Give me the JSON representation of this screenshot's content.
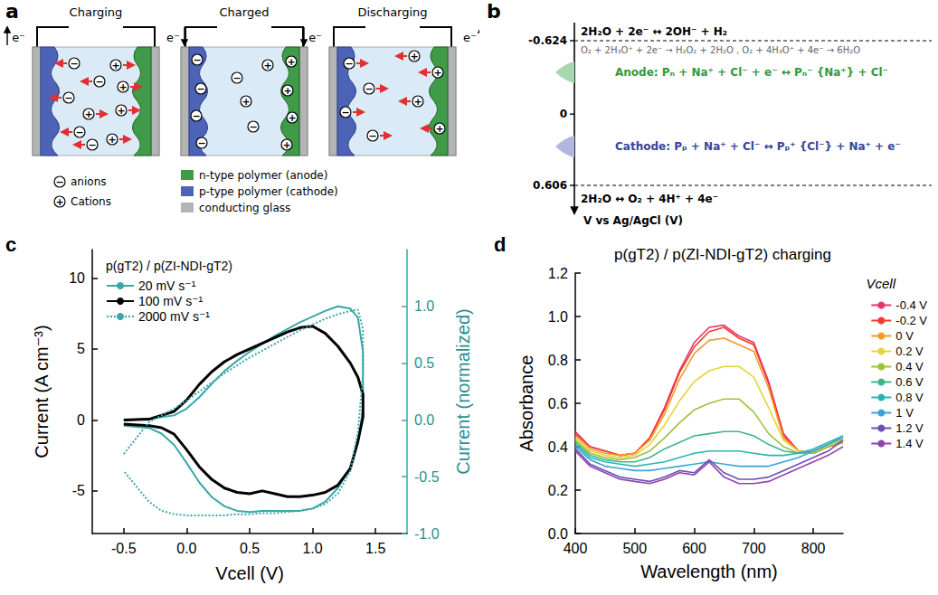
{
  "panel_a": {
    "letter": "a",
    "stages": [
      {
        "title": "Charging",
        "electrons": [
          "e⁻",
          "e⁻"
        ]
      },
      {
        "title": "Charged",
        "electrons": []
      },
      {
        "title": "Discharging",
        "electrons": [
          "e⁻",
          "e⁻"
        ]
      }
    ],
    "anion_symbol": "−",
    "cation_symbol": "+",
    "legend": {
      "anions": "anions",
      "cations": "Cations",
      "n_type": "n-type polymer (anode)",
      "p_type": "p-type polymer (cathode)",
      "glass": "conducting glass"
    }
  },
  "panel_b": {
    "letter": "b",
    "axis_title": "V vs Ag/AgCl (V)",
    "ticks": [
      -0.624,
      0,
      0.606
    ],
    "reactions": {
      "hydrogen": "2H₂O + 2e⁻ ↔ 2OH⁻ + H₂",
      "oxygen_reduction": "O₂ + 2H₃O⁺ + 2e⁻ → H₂O₂ + 2H₂O , O₂ + 4H₃O⁺ + 4e⁻ → 6H₂O",
      "anode": "Anode: Pₙ + Na⁺ + Cl⁻ + e⁻ ↔ Pₙ⁻ {Na⁺} + Cl⁻",
      "cathode": "Cathode: Pₚ + Na⁺ + Cl⁻ ↔ Pₚ⁺ {Cl⁻} + Na⁺ + e⁻",
      "oxygen": "2H₂O ↔ O₂ + 4H⁺ + 4e⁻"
    }
  },
  "chart_data": [
    {
      "letter": "c",
      "type": "line",
      "legend_title": "p(gT2) / p(ZI-NDI-gT2)",
      "x_label": "Vcell (V)",
      "y_label": "Current (A cm⁻³)",
      "y2_label": "Current (normalized)",
      "xlim": [
        -0.75,
        1.75
      ],
      "xticks": [
        -0.5,
        {
          "value": 0,
          "label": "0.0"
        },
        0.5,
        {
          "value": 1,
          "label": "1.0"
        },
        1.5
      ],
      "ylim": [
        -8,
        12
      ],
      "yticks": [
        -5,
        0,
        5,
        10
      ],
      "y2lim": [
        -1,
        1.5
      ],
      "y2ticks": [
        {
          "value": -1,
          "label": "-1.0"
        },
        -0.5,
        {
          "value": 0,
          "label": "0.0"
        },
        0.5,
        {
          "value": 1,
          "label": "1.0"
        }
      ],
      "grid": false,
      "legend": "upper left",
      "marker": "none",
      "series": [
        {
          "name": "20 mV s⁻¹",
          "color": "#3aa6a6",
          "axis": "y2",
          "line_style": "solid",
          "x": [
            -0.5,
            -0.3,
            -0.1,
            0,
            0.1,
            0.2,
            0.3,
            0.4,
            0.5,
            0.6,
            0.7,
            0.8,
            0.9,
            1.0,
            1.1,
            1.2,
            1.3,
            1.36,
            1.4,
            1.4,
            1.36,
            1.3,
            1.2,
            1.1,
            1.0,
            0.9,
            0.8,
            0.7,
            0.6,
            0.5,
            0.4,
            0.3,
            0.2,
            0.1,
            0,
            -0.1,
            -0.2,
            -0.3,
            -0.5
          ],
          "values": [
            0,
            0.01,
            0.04,
            0.1,
            0.2,
            0.32,
            0.43,
            0.52,
            0.6,
            0.67,
            0.74,
            0.8,
            0.86,
            0.91,
            0.96,
            1.0,
            0.98,
            0.9,
            0.6,
            0.1,
            -0.2,
            -0.42,
            -0.6,
            -0.72,
            -0.78,
            -0.8,
            -0.8,
            -0.8,
            -0.8,
            -0.81,
            -0.8,
            -0.76,
            -0.68,
            -0.55,
            -0.38,
            -0.22,
            -0.12,
            -0.07,
            -0.05
          ]
        },
        {
          "name": "100 mV s⁻¹",
          "color": "#000000",
          "line_style": "solid",
          "x": [
            -0.5,
            -0.3,
            -0.1,
            0,
            0.1,
            0.2,
            0.3,
            0.4,
            0.5,
            0.6,
            0.7,
            0.8,
            0.9,
            1.0,
            1.1,
            1.2,
            1.3,
            1.36,
            1.4,
            1.4,
            1.36,
            1.3,
            1.2,
            1.1,
            1.0,
            0.9,
            0.8,
            0.7,
            0.6,
            0.5,
            0.4,
            0.3,
            0.2,
            0.1,
            0,
            -0.1,
            -0.2,
            -0.3,
            -0.5
          ],
          "values": [
            0,
            0.05,
            0.6,
            1.4,
            2.5,
            3.4,
            4.1,
            4.6,
            5.0,
            5.4,
            5.8,
            6.2,
            6.5,
            6.6,
            6.1,
            5.2,
            4.0,
            3.0,
            1.8,
            0.2,
            -1.5,
            -3.4,
            -4.6,
            -5.1,
            -5.3,
            -5.4,
            -5.4,
            -5.2,
            -5.0,
            -5.2,
            -5.1,
            -4.8,
            -4.2,
            -3.3,
            -2.1,
            -1.0,
            -0.55,
            -0.4,
            -0.3
          ]
        },
        {
          "name": "2000 mV s⁻¹",
          "color": "#3aa6a6",
          "axis": "y2",
          "line_style": "dotted",
          "x": [
            -0.5,
            -0.3,
            -0.1,
            0,
            0.1,
            0.2,
            0.3,
            0.4,
            0.5,
            0.6,
            0.7,
            0.8,
            0.9,
            1.0,
            1.1,
            1.2,
            1.3,
            1.36,
            1.4,
            1.4,
            1.36,
            1.3,
            1.2,
            1.1,
            1.0,
            0.9,
            0.8,
            0.7,
            0.6,
            0.5,
            0.4,
            0.3,
            0.2,
            0.1,
            0,
            -0.1,
            -0.2,
            -0.3,
            -0.5
          ],
          "values": [
            -0.3,
            -0.02,
            0.1,
            0.17,
            0.25,
            0.33,
            0.41,
            0.48,
            0.55,
            0.61,
            0.67,
            0.73,
            0.79,
            0.84,
            0.89,
            0.93,
            0.96,
            0.97,
            0.8,
            0.4,
            -0.1,
            -0.45,
            -0.65,
            -0.74,
            -0.78,
            -0.8,
            -0.81,
            -0.82,
            -0.82,
            -0.83,
            -0.83,
            -0.84,
            -0.84,
            -0.84,
            -0.84,
            -0.83,
            -0.8,
            -0.72,
            -0.45
          ]
        }
      ]
    },
    {
      "letter": "d",
      "type": "line",
      "title": "p(gT2) / p(ZI-NDI-gT2) charging",
      "x_label": "Wavelength (nm)",
      "y_label": "Absorbance",
      "legend_title": "Vcell",
      "xlim": [
        400,
        850
      ],
      "xticks": [
        400,
        500,
        600,
        700,
        800
      ],
      "ylim": [
        0,
        1.2
      ],
      "yticks": [
        {
          "value": 0,
          "label": "0.0"
        },
        0.2,
        0.4,
        0.6,
        0.8,
        {
          "value": 1,
          "label": "1.0"
        },
        1.2
      ],
      "grid": false,
      "legend": "right",
      "marker": "none",
      "x": [
        400,
        425,
        450,
        475,
        500,
        525,
        550,
        575,
        600,
        625,
        650,
        675,
        700,
        725,
        750,
        775,
        800,
        825,
        850
      ],
      "series": [
        {
          "name": "-0.4 V",
          "color": "#e8336f",
          "values": [
            0.47,
            0.4,
            0.38,
            0.36,
            0.37,
            0.44,
            0.58,
            0.75,
            0.88,
            0.95,
            0.96,
            0.91,
            0.88,
            0.7,
            0.46,
            0.38,
            0.37,
            0.4,
            0.42
          ]
        },
        {
          "name": "-0.2 V",
          "color": "#f03c2c",
          "values": [
            0.46,
            0.4,
            0.38,
            0.36,
            0.37,
            0.44,
            0.57,
            0.74,
            0.86,
            0.93,
            0.95,
            0.9,
            0.87,
            0.69,
            0.45,
            0.38,
            0.37,
            0.4,
            0.42
          ]
        },
        {
          "name": "0 V",
          "color": "#f59a2a",
          "values": [
            0.45,
            0.39,
            0.37,
            0.36,
            0.37,
            0.43,
            0.55,
            0.71,
            0.83,
            0.89,
            0.9,
            0.87,
            0.84,
            0.67,
            0.44,
            0.38,
            0.37,
            0.4,
            0.42
          ]
        },
        {
          "name": "0.2 V",
          "color": "#e8d43a",
          "values": [
            0.44,
            0.38,
            0.36,
            0.35,
            0.36,
            0.41,
            0.5,
            0.61,
            0.7,
            0.75,
            0.77,
            0.77,
            0.72,
            0.58,
            0.43,
            0.38,
            0.37,
            0.4,
            0.43
          ]
        },
        {
          "name": "0.4 V",
          "color": "#9cc23a",
          "values": [
            0.43,
            0.37,
            0.35,
            0.34,
            0.35,
            0.38,
            0.44,
            0.51,
            0.57,
            0.6,
            0.62,
            0.62,
            0.56,
            0.46,
            0.4,
            0.37,
            0.37,
            0.4,
            0.43
          ]
        },
        {
          "name": "0.6 V",
          "color": "#3fb58a",
          "values": [
            0.42,
            0.36,
            0.34,
            0.33,
            0.33,
            0.35,
            0.39,
            0.42,
            0.45,
            0.46,
            0.47,
            0.47,
            0.45,
            0.41,
            0.38,
            0.37,
            0.38,
            0.41,
            0.44
          ]
        },
        {
          "name": "0.8 V",
          "color": "#2bb5b0",
          "values": [
            0.41,
            0.35,
            0.33,
            0.32,
            0.31,
            0.32,
            0.33,
            0.35,
            0.37,
            0.38,
            0.38,
            0.38,
            0.37,
            0.36,
            0.36,
            0.37,
            0.39,
            0.42,
            0.45
          ]
        },
        {
          "name": "1 V",
          "color": "#3aa4d8",
          "values": [
            0.4,
            0.34,
            0.31,
            0.3,
            0.29,
            0.29,
            0.3,
            0.31,
            0.32,
            0.33,
            0.32,
            0.31,
            0.31,
            0.31,
            0.33,
            0.35,
            0.38,
            0.41,
            0.45
          ]
        },
        {
          "name": "1.2 V",
          "color": "#6b4fb3",
          "values": [
            0.39,
            0.32,
            0.29,
            0.26,
            0.25,
            0.24,
            0.26,
            0.29,
            0.28,
            0.34,
            0.28,
            0.25,
            0.25,
            0.26,
            0.29,
            0.32,
            0.35,
            0.38,
            0.43
          ]
        },
        {
          "name": "1.4 V",
          "color": "#8e44ad",
          "values": [
            0.38,
            0.31,
            0.28,
            0.25,
            0.24,
            0.23,
            0.25,
            0.28,
            0.27,
            0.33,
            0.26,
            0.23,
            0.23,
            0.24,
            0.27,
            0.3,
            0.33,
            0.36,
            0.4
          ]
        }
      ]
    }
  ]
}
